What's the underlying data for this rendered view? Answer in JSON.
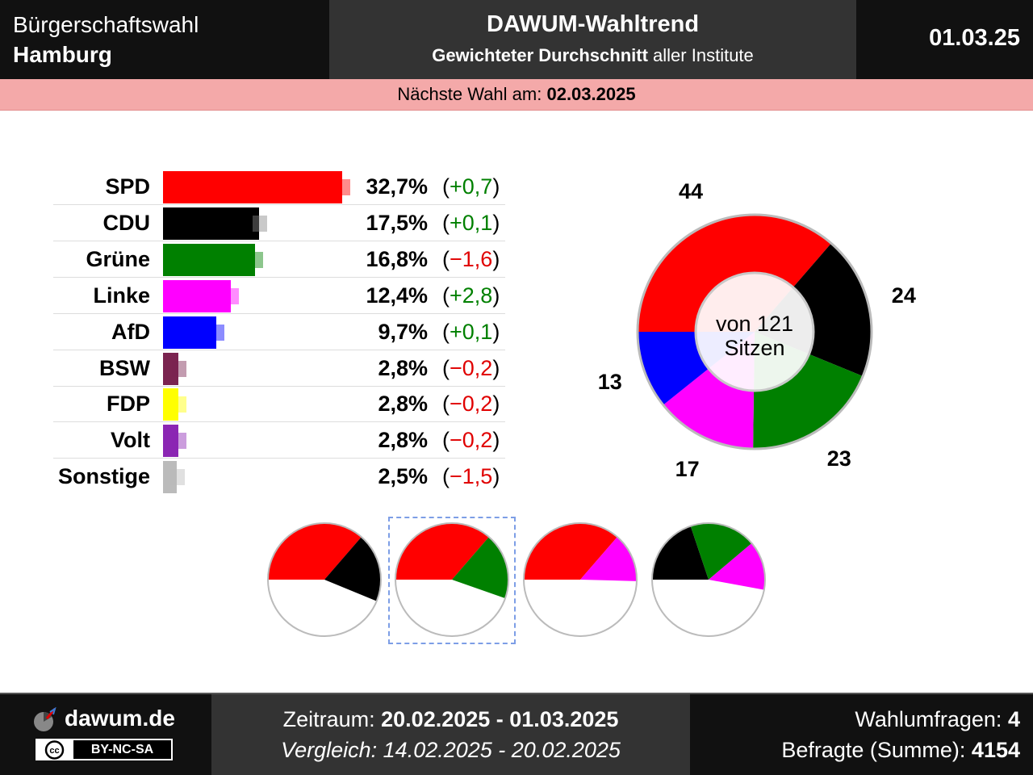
{
  "header": {
    "left_line1": "Bürgerschaftswahl",
    "left_line2": "Hamburg",
    "title": "DAWUM-Wahltrend",
    "subtitle_bold": "Gewichteter Durchschnitt",
    "subtitle_rest": "aller Institute",
    "date": "01.03.25"
  },
  "next_election": {
    "label": "Nächste Wahl am:",
    "date": "02.03.2025"
  },
  "chart_data": [
    {
      "type": "bar",
      "orientation": "horizontal",
      "categories": [
        "SPD",
        "CDU",
        "Grüne",
        "Linke",
        "AfD",
        "BSW",
        "FDP",
        "Volt",
        "Sonstige"
      ],
      "values": [
        32.7,
        17.5,
        16.8,
        12.4,
        9.7,
        2.8,
        2.8,
        2.8,
        2.5
      ],
      "value_labels": [
        "32,7%",
        "17,5%",
        "16,8%",
        "12,4%",
        "9,7%",
        "2,8%",
        "2,8%",
        "2,8%",
        "2,5%"
      ],
      "changes": [
        0.7,
        0.1,
        -1.6,
        2.8,
        0.1,
        -0.2,
        -0.2,
        -0.2,
        -1.5
      ],
      "change_labels": [
        "+0,7",
        "+0,1",
        "−1,6",
        "+2,8",
        "+0,1",
        "−0,2",
        "−0,2",
        "−0,2",
        "−1,5"
      ],
      "colors": [
        "#ff0000",
        "#000000",
        "#008000",
        "#ff00ff",
        "#0000ff",
        "#7b2450",
        "#ffff00",
        "#8b26b3",
        "#bbbbbb"
      ]
    },
    {
      "type": "pie",
      "style": "donut",
      "center_label": [
        "von 121",
        "Sitzen"
      ],
      "total_seats": 121,
      "categories": [
        "SPD",
        "CDU",
        "Grüne",
        "Linke",
        "AfD"
      ],
      "values": [
        44,
        24,
        23,
        17,
        13
      ],
      "colors": [
        "#ff0000",
        "#000000",
        "#008000",
        "#ff00ff",
        "#0000ff"
      ]
    }
  ],
  "coalitions": [
    {
      "parties": [
        "SPD",
        "CDU"
      ],
      "seats": [
        44,
        24
      ],
      "colors": [
        "#ff0000",
        "#000000"
      ],
      "highlighted": false
    },
    {
      "parties": [
        "SPD",
        "Grüne"
      ],
      "seats": [
        44,
        23
      ],
      "colors": [
        "#ff0000",
        "#008000"
      ],
      "highlighted": true
    },
    {
      "parties": [
        "SPD",
        "Linke"
      ],
      "seats": [
        44,
        17
      ],
      "colors": [
        "#ff0000",
        "#ff00ff"
      ],
      "highlighted": false
    },
    {
      "parties": [
        "CDU",
        "Grüne",
        "Linke"
      ],
      "seats": [
        24,
        23,
        17
      ],
      "colors": [
        "#000000",
        "#008000",
        "#ff00ff"
      ],
      "highlighted": false
    }
  ],
  "footer": {
    "site": "dawum.de",
    "license": "BY-NC-SA",
    "cc": "cc",
    "period_label": "Zeitraum:",
    "period": "20.02.2025 - 01.03.2025",
    "compare_label": "Vergleich:",
    "compare": "14.02.2025 - 20.02.2025",
    "polls_label": "Wahlumfragen:",
    "polls": "4",
    "respondents_label": "Befragte (Summe):",
    "respondents": "4154"
  }
}
